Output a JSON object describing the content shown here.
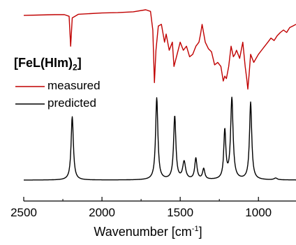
{
  "chart_data": {
    "type": "line",
    "title": "",
    "xlabel": "Wavenumber [cm",
    "xlabel_sup": "-1",
    "xlabel_end": "]",
    "ylabel": "",
    "xlim": [
      2500,
      760
    ],
    "x_ticks": [
      2500,
      2000,
      1500,
      1000
    ],
    "x_tick_labels": [
      "2500",
      "2000",
      "1500",
      "1000"
    ],
    "axis_reversed": true,
    "legend_title_main": "[FeL(HIm)",
    "legend_title_sub": "2",
    "legend_title_end": "]",
    "legend_position": "left",
    "series": [
      {
        "name": "measured",
        "color": "#c00000",
        "baseline": 0.93,
        "points": [
          [
            2500,
            0.93
          ],
          [
            2400,
            0.935
          ],
          [
            2300,
            0.94
          ],
          [
            2240,
            0.94
          ],
          [
            2210,
            0.92
          ],
          [
            2200,
            0.55
          ],
          [
            2190,
            0.9
          ],
          [
            2150,
            0.945
          ],
          [
            2000,
            0.96
          ],
          [
            1900,
            0.965
          ],
          [
            1800,
            0.975
          ],
          [
            1720,
            1.0
          ],
          [
            1690,
            0.98
          ],
          [
            1675,
            0.75
          ],
          [
            1665,
            0.1
          ],
          [
            1655,
            0.5
          ],
          [
            1640,
            0.8
          ],
          [
            1620,
            0.82
          ],
          [
            1600,
            0.6
          ],
          [
            1590,
            0.7
          ],
          [
            1570,
            0.5
          ],
          [
            1550,
            0.6
          ],
          [
            1540,
            0.3
          ],
          [
            1520,
            0.45
          ],
          [
            1500,
            0.6
          ],
          [
            1480,
            0.5
          ],
          [
            1460,
            0.55
          ],
          [
            1440,
            0.42
          ],
          [
            1420,
            0.45
          ],
          [
            1400,
            0.55
          ],
          [
            1380,
            0.6
          ],
          [
            1370,
            0.7
          ],
          [
            1360,
            0.82
          ],
          [
            1340,
            0.6
          ],
          [
            1320,
            0.52
          ],
          [
            1300,
            0.48
          ],
          [
            1280,
            0.32
          ],
          [
            1260,
            0.35
          ],
          [
            1240,
            0.3
          ],
          [
            1225,
            0.12
          ],
          [
            1215,
            0.18
          ],
          [
            1205,
            0.15
          ],
          [
            1190,
            0.3
          ],
          [
            1175,
            0.55
          ],
          [
            1160,
            0.42
          ],
          [
            1150,
            0.45
          ],
          [
            1140,
            0.5
          ],
          [
            1120,
            0.4
          ],
          [
            1100,
            0.6
          ],
          [
            1085,
            0.3
          ],
          [
            1075,
            0.15
          ],
          [
            1068,
            0.02
          ],
          [
            1060,
            0.2
          ],
          [
            1050,
            0.45
          ],
          [
            1030,
            0.35
          ],
          [
            1000,
            0.45
          ],
          [
            980,
            0.5
          ],
          [
            960,
            0.55
          ],
          [
            940,
            0.6
          ],
          [
            920,
            0.65
          ],
          [
            900,
            0.62
          ],
          [
            880,
            0.68
          ],
          [
            860,
            0.72
          ],
          [
            840,
            0.75
          ],
          [
            820,
            0.72
          ],
          [
            800,
            0.78
          ],
          [
            780,
            0.8
          ],
          [
            760,
            0.82
          ]
        ]
      },
      {
        "name": "predicted",
        "color": "#000000",
        "baseline": 0.0,
        "peaks": [
          {
            "center": 2190,
            "height": 0.72,
            "width": 11
          },
          {
            "center": 1650,
            "height": 0.93,
            "width": 11
          },
          {
            "center": 1535,
            "height": 0.72,
            "width": 11
          },
          {
            "center": 1475,
            "height": 0.2,
            "width": 14
          },
          {
            "center": 1400,
            "height": 0.24,
            "width": 11
          },
          {
            "center": 1350,
            "height": 0.12,
            "width": 11
          },
          {
            "center": 1215,
            "height": 0.55,
            "width": 10
          },
          {
            "center": 1170,
            "height": 0.92,
            "width": 12
          },
          {
            "center": 1050,
            "height": 0.88,
            "width": 11
          },
          {
            "center": 890,
            "height": 0.02,
            "width": 15
          }
        ]
      }
    ]
  }
}
